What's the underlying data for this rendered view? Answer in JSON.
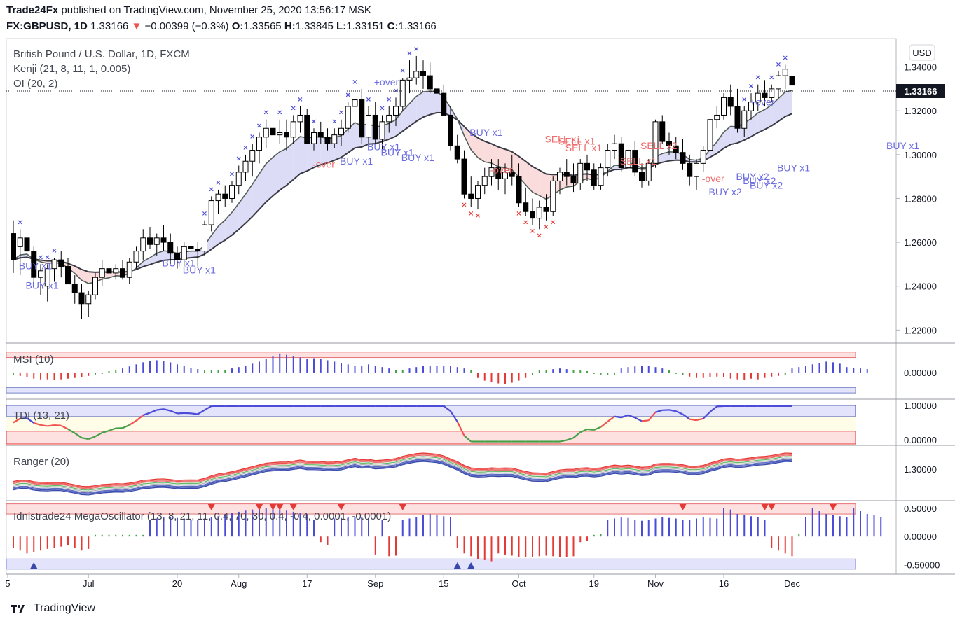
{
  "header": {
    "author": "Trade24Fx",
    "published_text": "published on TradingView.com, November 25, 2020 13:56:17 MSK",
    "symbol": "FX:GBPUSD, 1D",
    "last": "1.33166",
    "change": "−0.00399 (−0.3%)",
    "o_label": "O:",
    "o": "1.33565",
    "h_label": "H:",
    "h": "1.33845",
    "l_label": "L:",
    "l": "1.33151",
    "c_label": "C:",
    "c": "1.33166"
  },
  "currency_button": "USD",
  "price_badge": "1.33166",
  "brand": "TradingView",
  "colors": {
    "up_candle": "#ffffff",
    "down_candle": "#000000",
    "kenji_band": "#c9c9f3",
    "kenji_band_red": "#f7c9c9",
    "blue": "#4b4bd8",
    "red": "#e53935",
    "green": "#43a047"
  },
  "chart_data": [
    {
      "type": "candlestick",
      "title": "British Pound / U.S. Dollar, 1D, FXCM",
      "legend": [
        "Kenji (21, 8, 11, 1, 0.005)",
        "OI (20, 2)"
      ],
      "ylim": [
        1.215,
        1.352
      ],
      "y_ticks": [
        "1.34000",
        "1.32000",
        "1.30000",
        "1.28000",
        "1.26000",
        "1.24000",
        "1.22000"
      ],
      "ohlc": [
        [
          1.264,
          1.27,
          1.246,
          1.252
        ],
        [
          1.258,
          1.266,
          1.245,
          1.262
        ],
        [
          1.262,
          1.266,
          1.252,
          1.256
        ],
        [
          1.256,
          1.258,
          1.24,
          1.244
        ],
        [
          1.244,
          1.25,
          1.236,
          1.247
        ],
        [
          1.24,
          1.25,
          1.233,
          1.248
        ],
        [
          1.248,
          1.253,
          1.242,
          1.252
        ],
        [
          1.252,
          1.256,
          1.244,
          1.249
        ],
        [
          1.249,
          1.253,
          1.242,
          1.241
        ],
        [
          1.241,
          1.245,
          1.232,
          1.237
        ],
        [
          1.237,
          1.241,
          1.225,
          1.232
        ],
        [
          1.232,
          1.238,
          1.226,
          1.236
        ],
        [
          1.236,
          1.246,
          1.234,
          1.244
        ],
        [
          1.244,
          1.252,
          1.24,
          1.248
        ],
        [
          1.248,
          1.25,
          1.242,
          1.246
        ],
        [
          1.246,
          1.25,
          1.243,
          1.248
        ],
        [
          1.248,
          1.252,
          1.243,
          1.244
        ],
        [
          1.244,
          1.253,
          1.241,
          1.251
        ],
        [
          1.251,
          1.258,
          1.248,
          1.256
        ],
        [
          1.256,
          1.266,
          1.252,
          1.262
        ],
        [
          1.262,
          1.267,
          1.257,
          1.259
        ],
        [
          1.259,
          1.264,
          1.254,
          1.262
        ],
        [
          1.262,
          1.268,
          1.256,
          1.26
        ],
        [
          1.26,
          1.264,
          1.25,
          1.255
        ],
        [
          1.255,
          1.258,
          1.248,
          1.252
        ],
        [
          1.252,
          1.26,
          1.249,
          1.258
        ],
        [
          1.258,
          1.262,
          1.254,
          1.257
        ],
        [
          1.257,
          1.26,
          1.249,
          1.256
        ],
        [
          1.256,
          1.27,
          1.254,
          1.268
        ],
        [
          1.268,
          1.281,
          1.265,
          1.279
        ],
        [
          1.279,
          1.284,
          1.273,
          1.282
        ],
        [
          1.282,
          1.286,
          1.276,
          1.28
        ],
        [
          1.28,
          1.288,
          1.278,
          1.286
        ],
        [
          1.286,
          1.295,
          1.282,
          1.292
        ],
        [
          1.292,
          1.3,
          1.288,
          1.297
        ],
        [
          1.297,
          1.305,
          1.29,
          1.302
        ],
        [
          1.302,
          1.31,
          1.296,
          1.308
        ],
        [
          1.308,
          1.316,
          1.303,
          1.312
        ],
        [
          1.312,
          1.32,
          1.306,
          1.309
        ],
        [
          1.309,
          1.316,
          1.305,
          1.31
        ],
        [
          1.31,
          1.316,
          1.302,
          1.308
        ],
        [
          1.308,
          1.318,
          1.305,
          1.315
        ],
        [
          1.315,
          1.322,
          1.31,
          1.318
        ],
        [
          1.318,
          1.321,
          1.305,
          1.305
        ],
        [
          1.305,
          1.312,
          1.302,
          1.31
        ],
        [
          1.31,
          1.315,
          1.305,
          1.308
        ],
        [
          1.308,
          1.312,
          1.302,
          1.305
        ],
        [
          1.305,
          1.312,
          1.303,
          1.309
        ],
        [
          1.309,
          1.316,
          1.304,
          1.312
        ],
        [
          1.312,
          1.324,
          1.31,
          1.322
        ],
        [
          1.322,
          1.33,
          1.315,
          1.325
        ],
        [
          1.325,
          1.33,
          1.305,
          1.308
        ],
        [
          1.308,
          1.322,
          1.303,
          1.318
        ],
        [
          1.318,
          1.324,
          1.305,
          1.307
        ],
        [
          1.307,
          1.318,
          1.302,
          1.315
        ],
        [
          1.315,
          1.322,
          1.31,
          1.318
        ],
        [
          1.318,
          1.326,
          1.313,
          1.322
        ],
        [
          1.322,
          1.335,
          1.32,
          1.334
        ],
        [
          1.334,
          1.343,
          1.328,
          1.335
        ],
        [
          1.335,
          1.345,
          1.332,
          1.338
        ],
        [
          1.338,
          1.343,
          1.33,
          1.336
        ],
        [
          1.336,
          1.342,
          1.328,
          1.33
        ],
        [
          1.33,
          1.336,
          1.325,
          1.328
        ],
        [
          1.328,
          1.332,
          1.318,
          1.318
        ],
        [
          1.318,
          1.322,
          1.302,
          1.304
        ],
        [
          1.304,
          1.309,
          1.296,
          1.298
        ],
        [
          1.298,
          1.302,
          1.28,
          1.282
        ],
        [
          1.282,
          1.29,
          1.276,
          1.28
        ],
        [
          1.28,
          1.288,
          1.275,
          1.286
        ],
        [
          1.286,
          1.294,
          1.282,
          1.29
        ],
        [
          1.29,
          1.298,
          1.286,
          1.294
        ],
        [
          1.294,
          1.298,
          1.284,
          1.289
        ],
        [
          1.289,
          1.296,
          1.282,
          1.292
        ],
        [
          1.292,
          1.3,
          1.286,
          1.29
        ],
        [
          1.29,
          1.296,
          1.276,
          1.278
        ],
        [
          1.278,
          1.285,
          1.272,
          1.274
        ],
        [
          1.274,
          1.28,
          1.268,
          1.271
        ],
        [
          1.271,
          1.279,
          1.266,
          1.276
        ],
        [
          1.276,
          1.282,
          1.27,
          1.274
        ],
        [
          1.274,
          1.29,
          1.272,
          1.288
        ],
        [
          1.288,
          1.294,
          1.282,
          1.292
        ],
        [
          1.292,
          1.298,
          1.286,
          1.29
        ],
        [
          1.29,
          1.296,
          1.283,
          1.287
        ],
        [
          1.287,
          1.298,
          1.284,
          1.296
        ],
        [
          1.296,
          1.3,
          1.288,
          1.293
        ],
        [
          1.293,
          1.296,
          1.284,
          1.286
        ],
        [
          1.286,
          1.296,
          1.284,
          1.294
        ],
        [
          1.294,
          1.305,
          1.29,
          1.302
        ],
        [
          1.302,
          1.309,
          1.298,
          1.305
        ],
        [
          1.305,
          1.308,
          1.292,
          1.294
        ],
        [
          1.294,
          1.304,
          1.29,
          1.302
        ],
        [
          1.302,
          1.306,
          1.29,
          1.292
        ],
        [
          1.292,
          1.296,
          1.285,
          1.288
        ],
        [
          1.288,
          1.298,
          1.286,
          1.296
        ],
        [
          1.296,
          1.316,
          1.294,
          1.315
        ],
        [
          1.315,
          1.318,
          1.305,
          1.306
        ],
        [
          1.306,
          1.31,
          1.3,
          1.304
        ],
        [
          1.304,
          1.308,
          1.298,
          1.301
        ],
        [
          1.301,
          1.307,
          1.293,
          1.296
        ],
        [
          1.296,
          1.3,
          1.286,
          1.29
        ],
        [
          1.29,
          1.298,
          1.284,
          1.296
        ],
        [
          1.296,
          1.304,
          1.292,
          1.302
        ],
        [
          1.302,
          1.318,
          1.3,
          1.316
        ],
        [
          1.316,
          1.322,
          1.312,
          1.318
        ],
        [
          1.318,
          1.328,
          1.316,
          1.326
        ],
        [
          1.326,
          1.332,
          1.318,
          1.322
        ],
        [
          1.322,
          1.33,
          1.31,
          1.312
        ],
        [
          1.312,
          1.322,
          1.308,
          1.32
        ],
        [
          1.32,
          1.328,
          1.316,
          1.324
        ],
        [
          1.324,
          1.332,
          1.32,
          1.328
        ],
        [
          1.328,
          1.334,
          1.322,
          1.326
        ],
        [
          1.326,
          1.332,
          1.324,
          1.33
        ],
        [
          1.33,
          1.338,
          1.326,
          1.336
        ],
        [
          1.336,
          1.341,
          1.33,
          1.339
        ],
        [
          1.3357,
          1.3385,
          1.3315,
          1.3317
        ]
      ],
      "labels": [
        {
          "text": "BUY x1",
          "x": 1,
          "y": 1.2478,
          "color": "blue"
        },
        {
          "text": "BUY x1",
          "x": 2,
          "y": 1.2388,
          "color": "blue"
        },
        {
          "text": "BUY x1",
          "x": 22,
          "y": 1.249,
          "color": "blue"
        },
        {
          "text": "BUY x1",
          "x": 25,
          "y": 1.2458,
          "color": "blue"
        },
        {
          "text": "-over",
          "x": 44,
          "y": 1.294,
          "color": "red"
        },
        {
          "text": "BUY x1",
          "x": 48,
          "y": 1.2955,
          "color": "blue"
        },
        {
          "text": "BUY x1",
          "x": 52,
          "y": 1.302,
          "color": "blue"
        },
        {
          "text": "BUY x1",
          "x": 54,
          "y": 1.2995,
          "color": "blue"
        },
        {
          "text": "BUY x1",
          "x": 57,
          "y": 1.297,
          "color": "blue"
        },
        {
          "text": "+over",
          "x": 53,
          "y": 1.3315,
          "color": "blue"
        },
        {
          "text": "BUY x1",
          "x": 67,
          "y": 1.3085,
          "color": "blue"
        },
        {
          "text": "-over",
          "x": 70,
          "y": 1.2915,
          "color": "red"
        },
        {
          "text": "SELL x1",
          "x": 78,
          "y": 1.3055,
          "color": "red"
        },
        {
          "text": "SELL x1",
          "x": 80,
          "y": 1.3045,
          "color": "red"
        },
        {
          "text": "SELL x1",
          "x": 81,
          "y": 1.3015,
          "color": "red"
        },
        {
          "text": "SELL x1",
          "x": 89,
          "y": 1.2955,
          "color": "red"
        },
        {
          "text": "SELL x2",
          "x": 92,
          "y": 1.3025,
          "color": "red"
        },
        {
          "text": "-over",
          "x": 101,
          "y": 1.2875,
          "color": "red"
        },
        {
          "text": "BUY x2",
          "x": 102,
          "y": 1.2815,
          "color": "blue"
        },
        {
          "text": "BUY x2",
          "x": 108,
          "y": 1.2845,
          "color": "blue"
        },
        {
          "text": "BUY x2",
          "x": 107,
          "y": 1.2865,
          "color": "blue"
        },
        {
          "text": "BUY x2",
          "x": 106,
          "y": 1.2885,
          "color": "blue"
        },
        {
          "text": "+over",
          "x": 108,
          "y": 1.3225,
          "color": "blue"
        },
        {
          "text": "BUY x1",
          "x": 112,
          "y": 1.2925,
          "color": "blue"
        },
        {
          "text": "BUY x1",
          "x": 128,
          "y": 1.3025,
          "color": "blue"
        }
      ]
    },
    {
      "type": "bar",
      "title": "MSI (10)",
      "ylim": [
        -0.35,
        0.38
      ],
      "y_ticks": [
        "0.00000"
      ],
      "values": [
        -0.03,
        -0.05,
        -0.07,
        -0.09,
        -0.1,
        -0.1,
        -0.11,
        -0.1,
        -0.09,
        -0.08,
        -0.07,
        -0.05,
        -0.03,
        -0.02,
        0.02,
        0.04,
        0.06,
        0.09,
        0.12,
        0.15,
        0.17,
        0.18,
        0.17,
        0.15,
        0.12,
        0.1,
        0.07,
        0.05,
        0.04,
        0.03,
        0.03,
        0.04,
        0.06,
        0.08,
        0.1,
        0.13,
        0.16,
        0.2,
        0.24,
        0.28,
        0.26,
        0.24,
        0.22,
        0.2,
        0.21,
        0.2,
        0.18,
        0.16,
        0.14,
        0.12,
        0.1,
        0.1,
        0.12,
        0.1,
        0.08,
        0.06,
        0.04,
        0.04,
        0.06,
        0.08,
        0.1,
        0.1,
        0.1,
        0.1,
        0.1,
        0.08,
        0.06,
        0.04,
        -0.08,
        -0.12,
        -0.14,
        -0.16,
        -0.17,
        -0.15,
        -0.12,
        -0.08,
        -0.04,
        0.03,
        0.04,
        0.05,
        0.06,
        0.05,
        0.04,
        0.03,
        0.02,
        -0.02,
        -0.03,
        -0.04,
        -0.03,
        0.06,
        0.08,
        0.09,
        0.1,
        0.1,
        0.08,
        0.06,
        0.03,
        -0.02,
        -0.04,
        -0.06,
        -0.08,
        -0.08,
        -0.07,
        -0.06,
        -0.07,
        -0.09,
        -0.1,
        -0.11,
        -0.09,
        -0.1,
        -0.08,
        -0.06,
        -0.05,
        -0.04,
        0.06,
        0.08,
        0.1,
        0.12,
        0.14,
        0.16,
        0.15,
        0.13,
        0.08,
        0.07,
        0.06,
        0.05
      ]
    },
    {
      "type": "line",
      "title": "TDI (13, 21)",
      "y_ticks": [
        "1.00000",
        "0.00000"
      ]
    },
    {
      "type": "line",
      "title": "Ranger (20)",
      "y_ticks": [
        "1.30000"
      ]
    },
    {
      "type": "bar",
      "title": "Idnistrade24 MegaOscillator (13, 8, 21, 11, 0.4, 70, 30, 0.4, -0.4, 0.0001, -0.0001)",
      "ylim": [
        -0.62,
        0.6
      ],
      "y_ticks": [
        "0.50000",
        "0.00000",
        "-0.50000"
      ],
      "values": [
        -0.2,
        -0.25,
        -0.3,
        -0.28,
        -0.25,
        -0.22,
        -0.2,
        -0.18,
        -0.16,
        -0.2,
        -0.25,
        -0.22,
        0.03,
        0.03,
        0.03,
        0.03,
        0.03,
        0.03,
        0.03,
        0.03,
        0.3,
        0.32,
        0.34,
        0.35,
        0.33,
        0.32,
        0.3,
        0.3,
        0.32,
        0.34,
        0.36,
        0.4,
        0.42,
        0.44,
        0.46,
        0.48,
        0.5,
        0.5,
        0.5,
        0.48,
        0.46,
        0.44,
        0.42,
        0.4,
        0.3,
        -0.1,
        -0.15,
        0.32,
        0.33,
        0.34,
        0.35,
        0.34,
        0.33,
        -0.32,
        0.3,
        -0.35,
        -0.34,
        0.3,
        0.32,
        0.34,
        0.38,
        0.4,
        0.38,
        0.36,
        0.34,
        -0.2,
        -0.3,
        -0.35,
        -0.4,
        -0.42,
        -0.44,
        -0.3,
        -0.32,
        -0.34,
        -0.36,
        -0.36,
        -0.36,
        -0.35,
        -0.34,
        -0.35,
        -0.36,
        -0.36,
        -0.35,
        -0.1,
        -0.08,
        0.03,
        0.05,
        0.3,
        0.32,
        0.34,
        0.33,
        0.3,
        0.28,
        0.3,
        0.32,
        0.34,
        0.33,
        0.32,
        0.3,
        0.3,
        0.32,
        0.34,
        0.33,
        0.32,
        0.5,
        0.48,
        0.4,
        0.38,
        0.36,
        0.34,
        0.3,
        -0.2,
        -0.25,
        -0.3,
        -0.35,
        0.05,
        0.35,
        0.5,
        0.45,
        0.4,
        0.38,
        0.36,
        0.34,
        0.5,
        0.45,
        0.4,
        0.38,
        0.35
      ]
    }
  ],
  "x_ticks": [
    {
      "label": "5",
      "i": 0
    },
    {
      "label": "Jul",
      "i": 11
    },
    {
      "label": "20",
      "i": 24
    },
    {
      "label": "Aug",
      "i": 33
    },
    {
      "label": "17",
      "i": 43
    },
    {
      "label": "Sep",
      "i": 53
    },
    {
      "label": "15",
      "i": 63
    },
    {
      "label": "Oct",
      "i": 74
    },
    {
      "label": "19",
      "i": 85
    },
    {
      "label": "Nov",
      "i": 94
    },
    {
      "label": "16",
      "i": 104
    },
    {
      "label": "Dec",
      "i": 114
    }
  ]
}
